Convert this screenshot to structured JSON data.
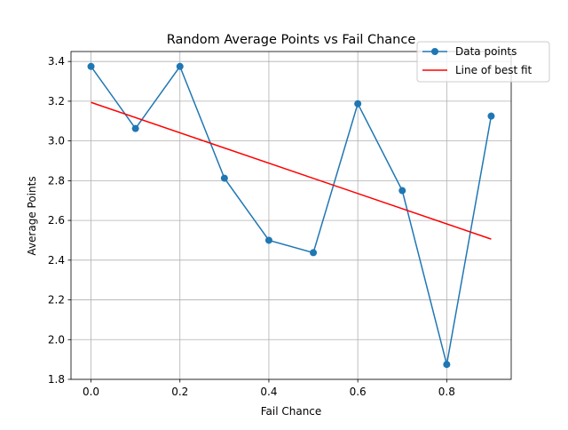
{
  "chart_data": {
    "type": "line",
    "title": "Random Average Points vs Fail Chance",
    "xlabel": "Fail Chance",
    "ylabel": "Average Points",
    "xlim": [
      -0.045,
      0.945
    ],
    "ylim": [
      1.8,
      3.45
    ],
    "x_ticks": [
      0.0,
      0.2,
      0.4,
      0.6,
      0.8
    ],
    "x_tick_labels": [
      "0.0",
      "0.2",
      "0.4",
      "0.6",
      "0.8"
    ],
    "y_ticks": [
      1.8,
      2.0,
      2.2,
      2.4,
      2.6,
      2.8,
      3.0,
      3.2,
      3.4
    ],
    "y_tick_labels": [
      "1.8",
      "2.0",
      "2.2",
      "2.4",
      "2.6",
      "2.8",
      "3.0",
      "3.2",
      "3.4"
    ],
    "grid": true,
    "legend_position": "top-right",
    "series": [
      {
        "name": "Data points",
        "style": "line-marker",
        "color": "#1f77b4",
        "x": [
          0.0,
          0.1,
          0.2,
          0.3,
          0.4,
          0.5,
          0.6,
          0.7,
          0.8,
          0.9
        ],
        "y": [
          3.375,
          3.0625,
          3.375,
          2.8125,
          2.5,
          2.4375,
          3.1875,
          2.75,
          1.875,
          3.125
        ]
      },
      {
        "name": "Line of best fit",
        "style": "line",
        "color": "#ff0000",
        "x": [
          0.0,
          0.9
        ],
        "y": [
          3.194,
          2.506
        ]
      }
    ]
  }
}
